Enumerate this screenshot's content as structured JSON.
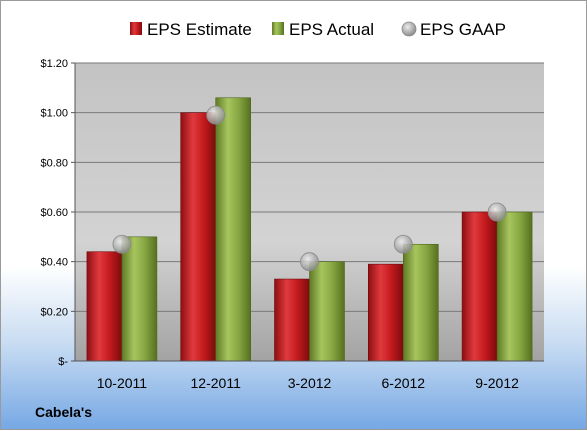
{
  "company_label": "Cabela's",
  "chart_data": {
    "type": "bar",
    "title": "",
    "xlabel": "",
    "ylabel": "",
    "categories": [
      "10-2011",
      "12-2011",
      "3-2012",
      "6-2012",
      "9-2012"
    ],
    "series": [
      {
        "name": "EPS Estimate",
        "type": "bar",
        "color": "#c0161b",
        "values": [
          0.44,
          1.0,
          0.33,
          0.39,
          0.6
        ]
      },
      {
        "name": "EPS Actual",
        "type": "bar",
        "color": "#7f9f3a",
        "values": [
          0.5,
          1.06,
          0.4,
          0.47,
          0.6
        ]
      },
      {
        "name": "EPS GAAP",
        "type": "marker",
        "color": "#b8b8b8",
        "values": [
          0.47,
          0.99,
          0.4,
          0.47,
          0.6
        ]
      }
    ],
    "ylim": [
      0,
      1.2
    ],
    "yticks": [
      0,
      0.2,
      0.4,
      0.6,
      0.8,
      1.0,
      1.2
    ],
    "ytick_labels": [
      "$-",
      "$0.20",
      "$0.40",
      "$0.60",
      "$0.80",
      "$1.00",
      "$1.20"
    ],
    "grid": true,
    "legend_position": "top"
  }
}
